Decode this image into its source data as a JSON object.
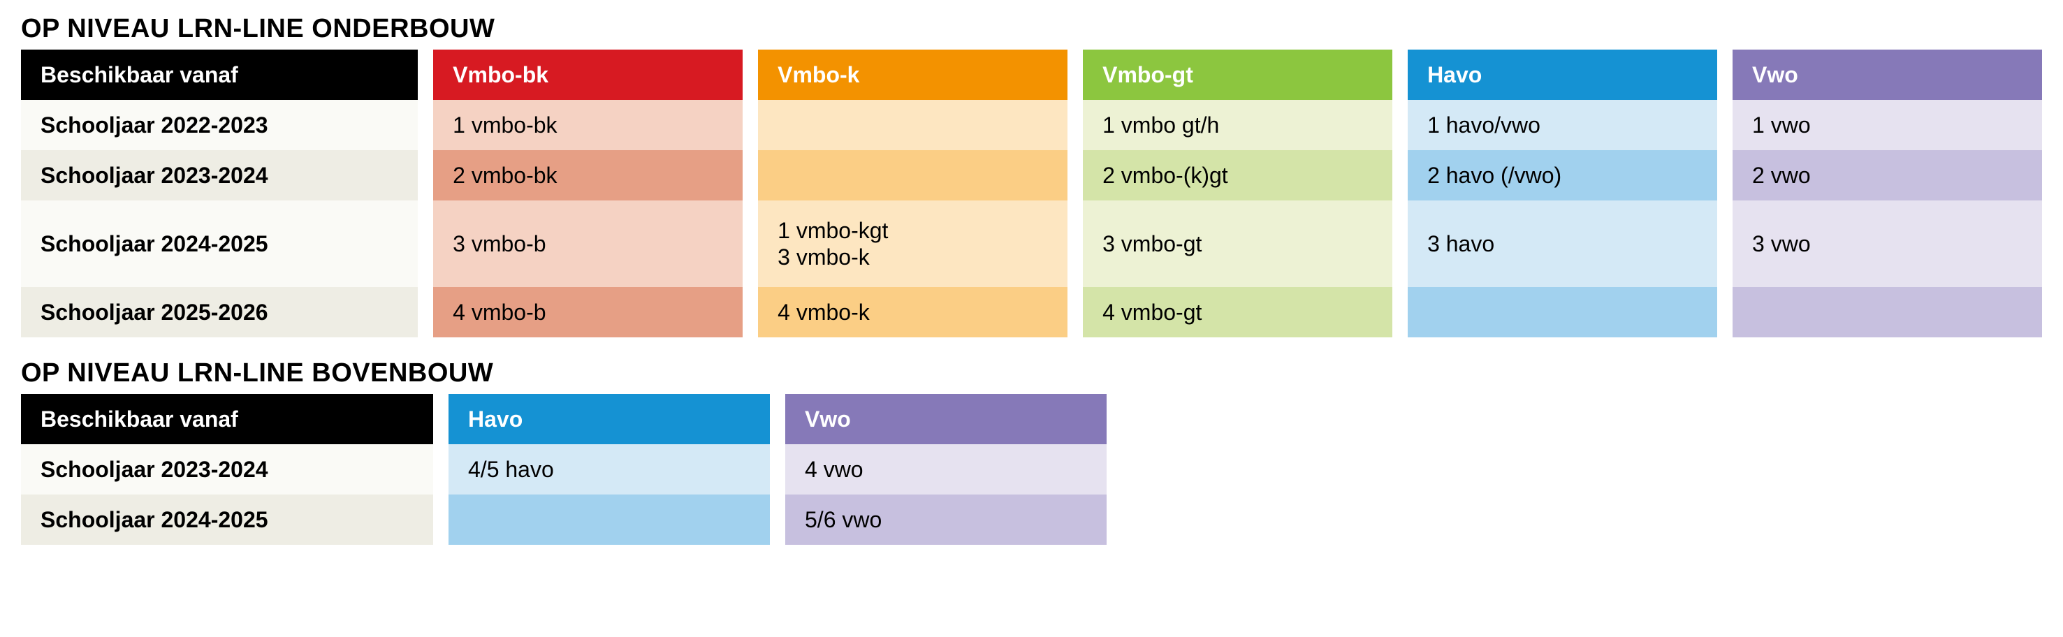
{
  "onderbouw": {
    "title": "OP NIVEAU LRN-LINE ONDERBOUW",
    "first_header": "Beschikbaar vanaf",
    "years": [
      "Schooljaar 2022-2023",
      "Schooljaar 2023-2024",
      "Schooljaar 2024-2025",
      "Schooljaar 2025-2026"
    ],
    "columns": [
      {
        "label": "Vmbo-bk",
        "header_color": "#d71a22",
        "light": "#f5d2c3",
        "dark": "#e69f85",
        "cells": [
          "1 vmbo-bk",
          "2 vmbo-bk",
          "3 vmbo-b",
          "4 vmbo-b"
        ]
      },
      {
        "label": "Vmbo-k",
        "header_color": "#f39200",
        "light": "#fde6c1",
        "dark": "#fbce85",
        "cells": [
          "",
          "",
          "1 vmbo-kgt\n3 vmbo-k",
          "4 vmbo-k"
        ]
      },
      {
        "label": "Vmbo-gt",
        "header_color": "#8cc63f",
        "light": "#edf2d4",
        "dark": "#d4e4a8",
        "cells": [
          "1 vmbo gt/h",
          "2 vmbo-(k)gt",
          "3 vmbo-gt",
          "4 vmbo-gt"
        ]
      },
      {
        "label": "Havo",
        "header_color": "#1592d3",
        "light": "#d4e9f6",
        "dark": "#a1d1ee",
        "cells": [
          "1 havo/vwo",
          "2 havo (/vwo)",
          "3 havo",
          ""
        ]
      },
      {
        "label": "Vwo",
        "header_color": "#8679b8",
        "light": "#e6e2f0",
        "dark": "#c7c0df",
        "cells": [
          "1 vwo",
          "2 vwo",
          "3 vwo",
          ""
        ]
      }
    ]
  },
  "bovenbouw": {
    "title": "OP NIVEAU LRN-LINE BOVENBOUW",
    "first_header": "Beschikbaar vanaf",
    "years": [
      "Schooljaar 2023-2024",
      "Schooljaar 2024-2025"
    ],
    "columns": [
      {
        "label": "Havo",
        "header_color": "#1592d3",
        "light": "#d4e9f6",
        "dark": "#a1d1ee",
        "cells": [
          "4/5 havo",
          ""
        ]
      },
      {
        "label": "Vwo",
        "header_color": "#8679b8",
        "light": "#e6e2f0",
        "dark": "#c7c0df",
        "cells": [
          "4 vwo",
          "5/6 vwo"
        ]
      }
    ]
  },
  "layout": {
    "row_shade_a": "#fafaf6",
    "row_shade_b": "#eeede4",
    "big_row_index": 2
  }
}
